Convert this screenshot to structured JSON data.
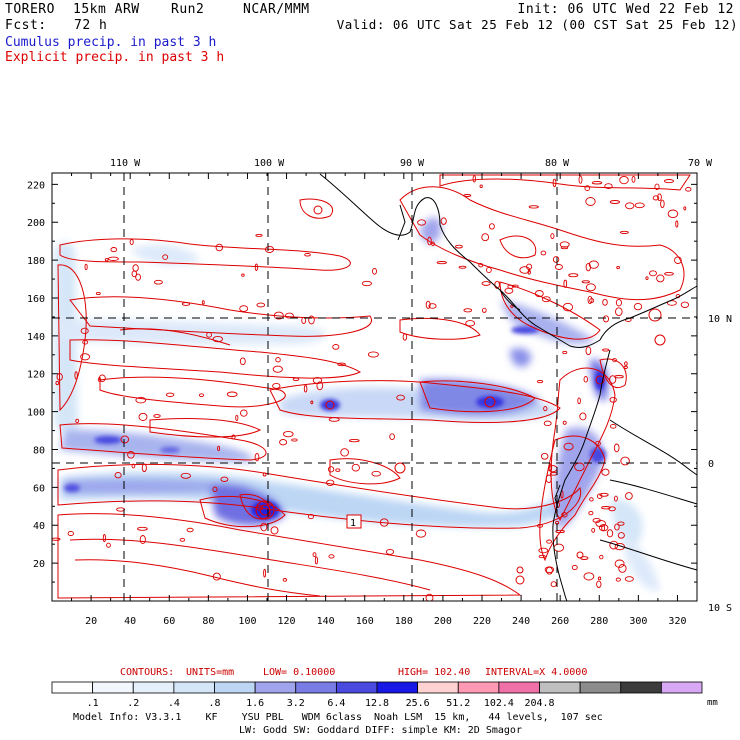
{
  "header": {
    "model": "TORERO",
    "grid": "15km ARW",
    "run": "Run2",
    "org": "NCAR/MMM",
    "fcst_label": "Fcst:",
    "fcst_value": "72 h",
    "init": "Init: 06 UTC Wed 22 Feb 12",
    "valid": "Valid: 06 UTC Sat 25 Feb 12 (00 CST Sat 25 Feb 12)"
  },
  "subtitles": {
    "cumulus": "Cumulus precip. in past 3 h",
    "explicit": "Explicit precip. in past 3 h"
  },
  "map": {
    "lon_labels": [
      "110 W",
      "100 W",
      "90 W",
      "80 W",
      "70 W"
    ],
    "lat_labels": [
      "10 N",
      "0",
      "10 S"
    ],
    "x_ticks": [
      "20",
      "40",
      "60",
      "80",
      "100",
      "120",
      "140",
      "160",
      "180",
      "200",
      "220",
      "240",
      "260",
      "280",
      "300",
      "320"
    ],
    "y_ticks": [
      "20",
      "40",
      "60",
      "80",
      "100",
      "120",
      "140",
      "160",
      "180",
      "200",
      "220"
    ],
    "marker": "1"
  },
  "contours": {
    "label": "CONTOURS:",
    "units": "UNITS=mm",
    "low": "LOW= 0.10000",
    "high": "HIGH= 102.40",
    "interval": "INTERVAL=X 4.0000"
  },
  "legend": {
    "unit": "mm",
    "colors": [
      "#ffffff",
      "#f2f7fd",
      "#e5f0fb",
      "#d4e6f8",
      "#bcd6f4",
      "#a0a4ec",
      "#7a7ce6",
      "#4a4ae0",
      "#1818e6",
      "#ffd2d2",
      "#ff99b4",
      "#f070a8",
      "#bfbfbf",
      "#8c8c8c",
      "#3c3c3c",
      "#d8a8f4"
    ],
    "labels": [
      ".1",
      ".2",
      ".4",
      ".8",
      "1.6",
      "3.2",
      "6.4",
      "12.8",
      "25.6",
      "51.2",
      "102.4",
      "204.8"
    ]
  },
  "footer": {
    "line1": "Model Info: V3.3.1    KF    YSU PBL   WDM 6class  Noah LSM  15 km,   44 levels,  107 sec",
    "line2": "LW: Godd SW: Goddard DIFF: simple KM: 2D Smagor"
  }
}
